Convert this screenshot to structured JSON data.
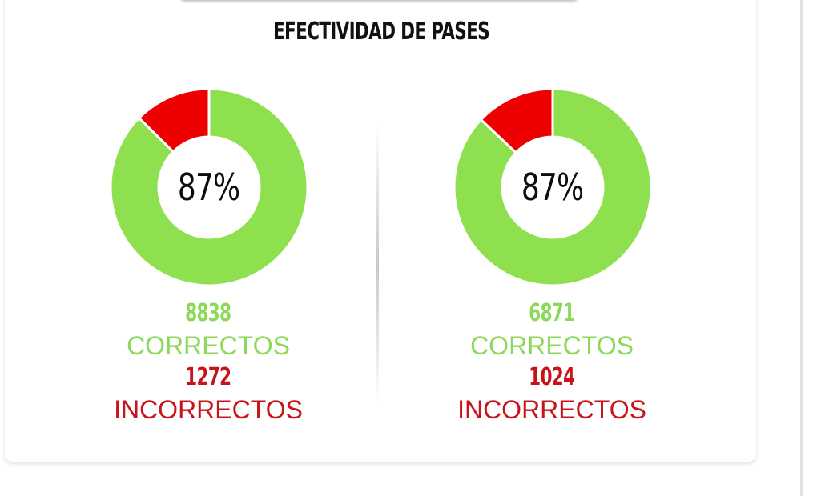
{
  "title": "EFECTIVIDAD DE PASES",
  "colors": {
    "correct": "#8ee04f",
    "incorrect": "#ee0000",
    "correct_text": "#8cd959",
    "incorrect_text": "#c8131b"
  },
  "panels": [
    {
      "percent_label": "87%",
      "correct_count": "8838",
      "correct_label": "CORRECTOS",
      "incorrect_count": "1272",
      "incorrect_label": "INCORRECTOS"
    },
    {
      "percent_label": "87%",
      "correct_count": "6871",
      "correct_label": "CORRECTOS",
      "incorrect_count": "1024",
      "incorrect_label": "INCORRECTOS"
    }
  ],
  "chart_data": [
    {
      "type": "pie",
      "title": "EFECTIVIDAD DE PASES",
      "categories": [
        "CORRECTOS",
        "INCORRECTOS"
      ],
      "values": [
        8838,
        1272
      ],
      "center_label": "87%",
      "colors": [
        "#8ee04f",
        "#ee0000"
      ]
    },
    {
      "type": "pie",
      "title": "EFECTIVIDAD DE PASES",
      "categories": [
        "CORRECTOS",
        "INCORRECTOS"
      ],
      "values": [
        6871,
        1024
      ],
      "center_label": "87%",
      "colors": [
        "#8ee04f",
        "#ee0000"
      ]
    }
  ]
}
